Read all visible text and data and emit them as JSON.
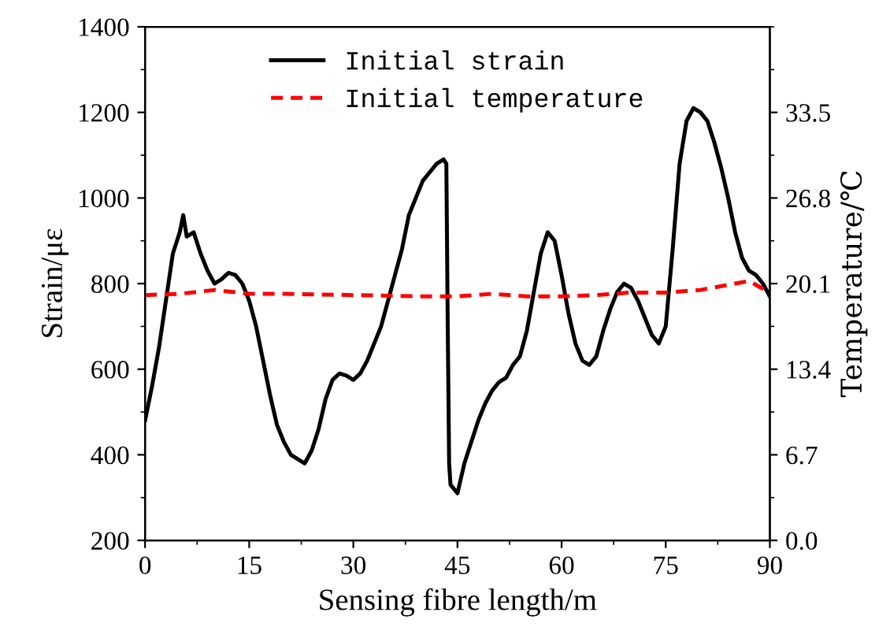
{
  "chart_data": {
    "type": "line",
    "xlabel": "Sensing fibre length/m",
    "ylabel": "Strain/με",
    "y2label": "Temperature/℃",
    "xlim": [
      0,
      90
    ],
    "xticks": [
      0,
      15,
      30,
      45,
      60,
      75,
      90
    ],
    "ylim": [
      200,
      1400
    ],
    "yticks": [
      200,
      400,
      600,
      800,
      1000,
      1200,
      1400
    ],
    "y2lim": [
      0,
      40.2
    ],
    "y2ticks": [
      {
        "value": 0,
        "label": "0.0"
      },
      6.7,
      13.4,
      20.1,
      26.8,
      33.5
    ],
    "legend": "top",
    "grid": false,
    "series": [
      {
        "name": "Initial strain",
        "color": "#000000",
        "line_style": "solid",
        "x": [
          0,
          1,
          2,
          3,
          4,
          5,
          5.5,
          6,
          7,
          8,
          9,
          10,
          11,
          12,
          13,
          14,
          15,
          16,
          17,
          18,
          19,
          20,
          21,
          22,
          23,
          24,
          25,
          26,
          27,
          28,
          29,
          30,
          31,
          32,
          33,
          34,
          35,
          36,
          37,
          38,
          39,
          40,
          41,
          42,
          43,
          43.4,
          43.6,
          43.8,
          44,
          45,
          46,
          47,
          48,
          49,
          50,
          51,
          52,
          53,
          54,
          55,
          56,
          57,
          58,
          59,
          60,
          61,
          62,
          63,
          64,
          65,
          66,
          67,
          68,
          69,
          70,
          71,
          72,
          73,
          74,
          75,
          76,
          77,
          78,
          79,
          80,
          81,
          82,
          83,
          84,
          85,
          86,
          87,
          88,
          89,
          90
        ],
        "values": [
          480,
          560,
          650,
          760,
          870,
          920,
          960,
          910,
          920,
          870,
          830,
          800,
          810,
          825,
          820,
          800,
          760,
          700,
          620,
          540,
          470,
          430,
          400,
          390,
          380,
          410,
          460,
          530,
          575,
          590,
          585,
          575,
          590,
          620,
          660,
          700,
          760,
          820,
          880,
          960,
          1000,
          1040,
          1060,
          1080,
          1090,
          1080,
          700,
          380,
          330,
          310,
          380,
          430,
          480,
          520,
          550,
          570,
          580,
          610,
          630,
          690,
          780,
          870,
          920,
          900,
          820,
          730,
          660,
          620,
          610,
          630,
          690,
          740,
          780,
          800,
          790,
          760,
          720,
          680,
          660,
          700,
          880,
          1080,
          1180,
          1210,
          1200,
          1180,
          1130,
          1070,
          1000,
          920,
          860,
          830,
          820,
          800,
          770
        ]
      },
      {
        "name": "Initial temperature",
        "color": "#ff0000",
        "line_style": "dashed",
        "axis": "y2",
        "x": [
          0,
          5,
          10,
          15,
          20,
          30,
          40,
          45,
          50,
          55,
          60,
          65,
          70,
          75,
          80,
          85,
          87,
          90
        ],
        "values": [
          19.2,
          19.3,
          19.6,
          19.3,
          19.3,
          19.2,
          19.1,
          19.1,
          19.3,
          19.1,
          19.1,
          19.2,
          19.4,
          19.4,
          19.6,
          20.1,
          20.3,
          19.4
        ]
      }
    ]
  }
}
